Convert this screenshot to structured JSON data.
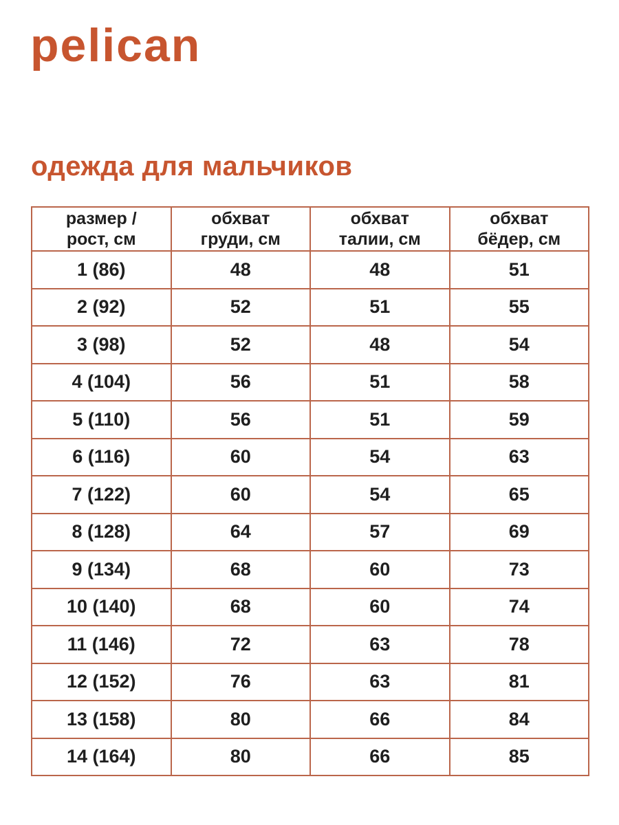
{
  "logo_text": "pelican",
  "heading": "одежда для мальчиков",
  "colors": {
    "accent": "#C7552F",
    "table_border": "#BA654A",
    "text": "#1F1F1F"
  },
  "table": {
    "headers": [
      "размер /\nрост, см",
      "обхват\nгруди, см",
      "обхват\nталии, см",
      "обхват\nбёдер, см"
    ],
    "rows": [
      [
        "1 (86)",
        "48",
        "48",
        "51"
      ],
      [
        "2 (92)",
        "52",
        "51",
        "55"
      ],
      [
        "3 (98)",
        "52",
        "48",
        "54"
      ],
      [
        "4 (104)",
        "56",
        "51",
        "58"
      ],
      [
        "5 (110)",
        "56",
        "51",
        "59"
      ],
      [
        "6 (116)",
        "60",
        "54",
        "63"
      ],
      [
        "7 (122)",
        "60",
        "54",
        "65"
      ],
      [
        "8 (128)",
        "64",
        "57",
        "69"
      ],
      [
        "9 (134)",
        "68",
        "60",
        "73"
      ],
      [
        "10 (140)",
        "68",
        "60",
        "74"
      ],
      [
        "11 (146)",
        "72",
        "63",
        "78"
      ],
      [
        "12 (152)",
        "76",
        "63",
        "81"
      ],
      [
        "13 (158)",
        "80",
        "66",
        "84"
      ],
      [
        "14 (164)",
        "80",
        "66",
        "85"
      ]
    ]
  }
}
